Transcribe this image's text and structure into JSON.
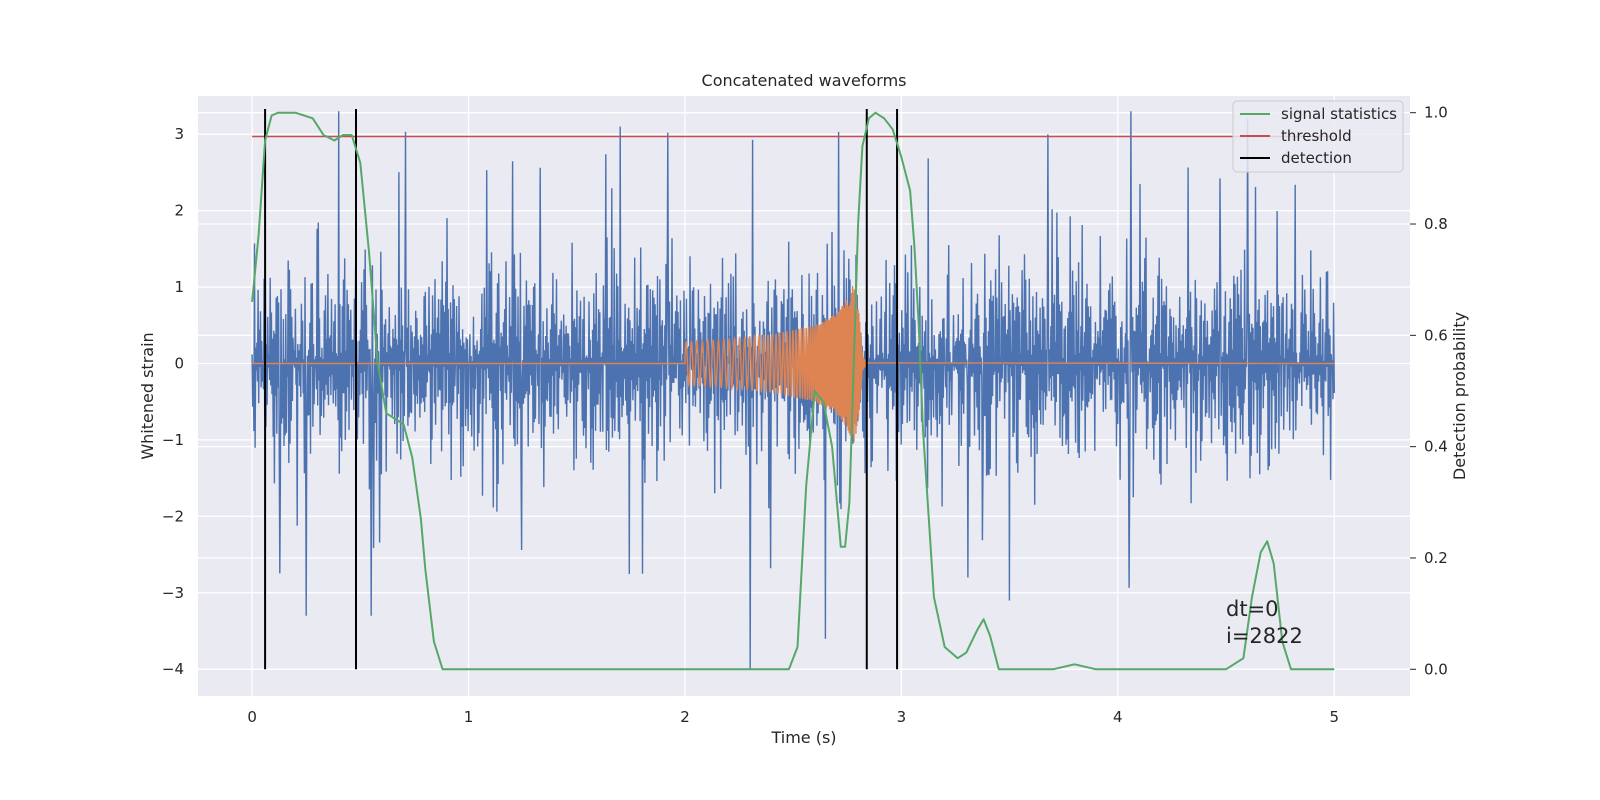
{
  "chart_data": {
    "type": "line",
    "title": "Concatenated waveforms",
    "xlabel": "Time (s)",
    "ylabel": "Whitened strain",
    "y2label": "Detection probability",
    "xlim": [
      -0.25,
      5.35
    ],
    "ylim": [
      -4.35,
      3.5
    ],
    "y2lim": [
      -0.048,
      1.03
    ],
    "xticks": [
      0,
      1,
      2,
      3,
      4,
      5
    ],
    "yticks": [
      3,
      2,
      1,
      0,
      -1,
      -2,
      -3,
      -4
    ],
    "y2ticks": [
      1.0,
      0.8,
      0.6,
      0.4,
      0.2,
      0.0
    ],
    "x_tick_labels": [
      "0",
      "1",
      "2",
      "3",
      "4",
      "5"
    ],
    "y_tick_labels": [
      "3",
      "2",
      "1",
      "0",
      "−1",
      "−2",
      "−3",
      "−4"
    ],
    "y2_tick_labels": [
      "1.0",
      "0.8",
      "0.6",
      "0.4",
      "0.2",
      "0.0"
    ],
    "grid": true,
    "legend_position": "top-right",
    "legend": [
      {
        "name": "signal statistics",
        "color": "#55a868"
      },
      {
        "name": "threshold",
        "color": "#c44e52"
      },
      {
        "name": "detection",
        "color": "#000000"
      }
    ],
    "colors": {
      "strain": "#4c72b0",
      "injection": "#dd8452",
      "signal_statistics": "#55a868",
      "threshold": "#c44e52",
      "detection": "#000000",
      "axes_background": "#eaeaf2",
      "grid": "#ffffff"
    },
    "threshold": {
      "x": [
        0,
        5
      ],
      "y": 2.97
    },
    "detections": [
      0.06,
      0.48,
      2.84,
      2.98
    ],
    "detection_span": [
      -4,
      3.33
    ],
    "strain": {
      "x_range": [
        0,
        5
      ],
      "typical_envelope": [
        -1.4,
        1.3
      ],
      "notable_peaks": [
        {
          "x": 0.4,
          "y": 3.3
        },
        {
          "x": 0.71,
          "y": 3.03
        },
        {
          "x": 1.7,
          "y": 3.1
        },
        {
          "x": 2.71,
          "y": 3.03
        },
        {
          "x": 4.06,
          "y": 3.3
        },
        {
          "x": 4.6,
          "y": 3.2
        }
      ],
      "notable_troughs": [
        {
          "x": 0.25,
          "y": -3.3
        },
        {
          "x": 0.55,
          "y": -3.3
        },
        {
          "x": 2.3,
          "y": -4.0
        },
        {
          "x": 2.65,
          "y": -3.6
        },
        {
          "x": 3.5,
          "y": -3.1
        }
      ]
    },
    "injection": {
      "x": [
        2.0,
        2.2,
        2.4,
        2.6,
        2.7,
        2.75,
        2.78,
        2.8,
        2.82,
        2.84
      ],
      "amplitude": [
        0.28,
        0.32,
        0.38,
        0.5,
        0.65,
        0.85,
        1.05,
        0.8,
        0.1,
        0.02
      ]
    },
    "signal_statistics": {
      "x": [
        0.0,
        0.03,
        0.06,
        0.09,
        0.12,
        0.2,
        0.28,
        0.33,
        0.38,
        0.42,
        0.46,
        0.5,
        0.54,
        0.58,
        0.62,
        0.66,
        0.7,
        0.74,
        0.78,
        0.8,
        0.84,
        0.88,
        1.0,
        1.5,
        2.0,
        2.4,
        2.48,
        2.52,
        2.56,
        2.6,
        2.64,
        2.68,
        2.72,
        2.74,
        2.76,
        2.78,
        2.8,
        2.82,
        2.85,
        2.88,
        2.92,
        2.96,
        3.0,
        3.04,
        3.06,
        3.08,
        3.1,
        3.15,
        3.2,
        3.26,
        3.3,
        3.35,
        3.38,
        3.41,
        3.45,
        3.5,
        3.7,
        3.8,
        3.9,
        4.0,
        4.5,
        4.58,
        4.62,
        4.66,
        4.69,
        4.72,
        4.76,
        4.8,
        4.85,
        4.9,
        5.0
      ],
      "y": [
        0.66,
        0.78,
        0.95,
        0.995,
        1.0,
        1.0,
        0.99,
        0.96,
        0.95,
        0.96,
        0.96,
        0.91,
        0.75,
        0.55,
        0.46,
        0.45,
        0.44,
        0.38,
        0.27,
        0.18,
        0.05,
        0.0,
        0.0,
        0.0,
        0.0,
        0.0,
        0.0,
        0.04,
        0.33,
        0.5,
        0.48,
        0.4,
        0.22,
        0.22,
        0.3,
        0.55,
        0.8,
        0.94,
        0.99,
        1.0,
        0.99,
        0.97,
        0.92,
        0.86,
        0.76,
        0.62,
        0.43,
        0.13,
        0.04,
        0.02,
        0.03,
        0.07,
        0.09,
        0.06,
        0.0,
        0.0,
        0.0,
        0.009,
        0.0,
        0.0,
        0.0,
        0.02,
        0.13,
        0.21,
        0.23,
        0.19,
        0.05,
        0.0,
        0.0,
        0.0,
        0.0
      ]
    },
    "annotations": [
      "dt=0",
      "i=2822"
    ]
  }
}
